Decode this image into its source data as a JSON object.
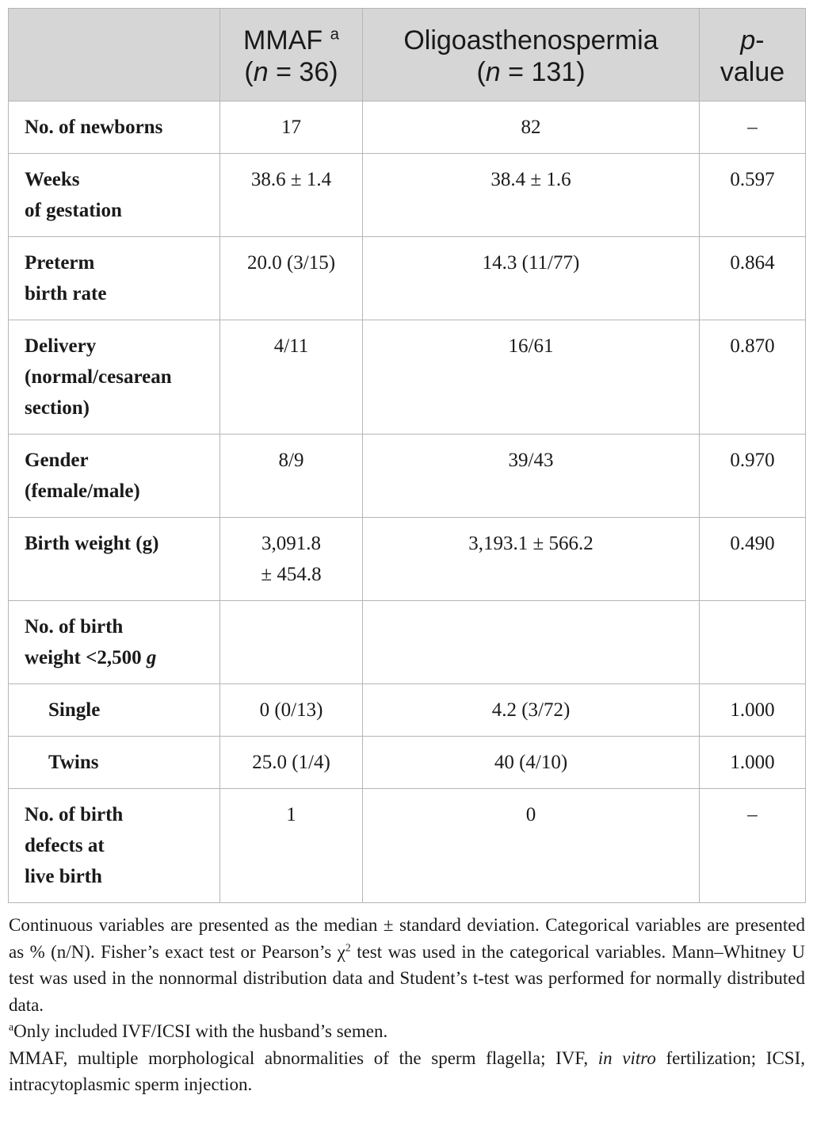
{
  "table": {
    "headers": [
      {
        "text": ""
      },
      {
        "line1": "MMAF",
        "sup": "a",
        "line2_pre": "(",
        "line2_ital": "n",
        "line2_post": " = 36)"
      },
      {
        "line1": "Oligoasthenospermia",
        "line2_pre": "(",
        "line2_ital": "n",
        "line2_post": " = 131)"
      },
      {
        "line1_ital": "p",
        "line1_post": "-",
        "line2": "value"
      }
    ],
    "rows": [
      {
        "label": "No. of newborns",
        "mmaf": "17",
        "oligo": "82",
        "p": "–"
      },
      {
        "label_lines": [
          "Weeks",
          "of gestation"
        ],
        "mmaf": "38.6 ± 1.4",
        "oligo": "38.4 ± 1.6",
        "p": "0.597"
      },
      {
        "label_lines": [
          "Preterm",
          "birth rate"
        ],
        "mmaf": "20.0 (3/15)",
        "oligo": "14.3 (11/77)",
        "p": "0.864"
      },
      {
        "label_lines": [
          "Delivery",
          "(normal/cesarean",
          "section)"
        ],
        "mmaf": "4/11",
        "oligo": "16/61",
        "p": "0.870"
      },
      {
        "label_lines": [
          "Gender",
          "(female/male)"
        ],
        "mmaf": "8/9",
        "oligo": "39/43",
        "p": "0.970"
      },
      {
        "label": "Birth weight (g)",
        "mmaf_lines": [
          "3,091.8",
          "± 454.8"
        ],
        "oligo": "3,193.1 ± 566.2",
        "p": "0.490"
      },
      {
        "label_lines": [
          "No. of birth",
          "weight <2,500 "
        ],
        "label_ital": "g",
        "mmaf": "",
        "oligo": "",
        "p": ""
      },
      {
        "label": "Single",
        "mmaf": "0 (0/13)",
        "oligo": "4.2 (3/72)",
        "p": "1.000"
      },
      {
        "label": "Twins",
        "mmaf": "25.0 (1/4)",
        "oligo": "40 (4/10)",
        "p": "1.000"
      },
      {
        "label_lines": [
          "No. of birth",
          "defects at",
          "live birth"
        ],
        "mmaf": "1",
        "oligo": "0",
        "p": "–"
      }
    ]
  },
  "notes": {
    "p1_a": "Continuous variables are presented as the median ± standard deviation. Categorical variables are presented as % (n/N). Fisher’s exact test or Pearson’s χ",
    "p1_sup": "2",
    "p1_b": " test was used in the categorical variables. Mann–Whitney U test was used in the nonnormal distribution data and Student’s t-test was performed for normally distributed data.",
    "p2_sup": "a",
    "p2": "Only included IVF/ICSI with the husband’s semen.",
    "p3_a": "MMAF, multiple morphological abnormalities of the sperm flagella; IVF, ",
    "p3_ital": "in vitro",
    "p3_b": " fertilization; ICSI, intracytoplasmic sperm injection."
  }
}
